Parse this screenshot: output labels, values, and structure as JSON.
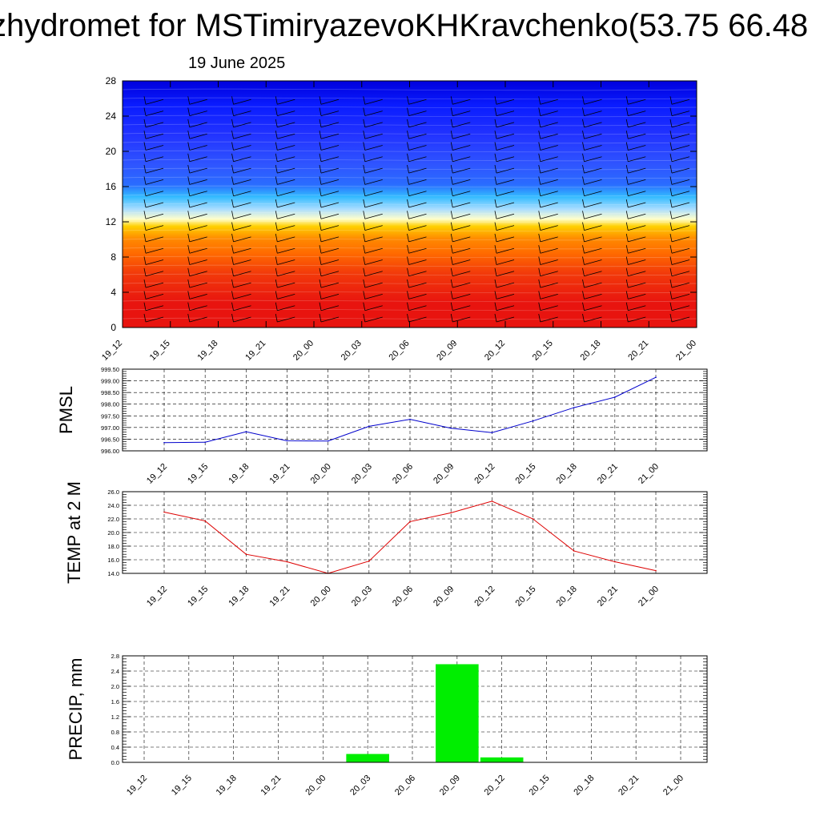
{
  "title": "zhydromet for MSTimiryazevoKHKravchenko(53.75 66.48",
  "date": "19 June 2025",
  "time_labels": [
    "19_12",
    "19_15",
    "19_18",
    "19_21",
    "20_00",
    "20_03",
    "20_06",
    "20_09",
    "20_12",
    "20_15",
    "20_18",
    "20_21",
    "21_00"
  ],
  "chart_data": [
    {
      "type": "heatmap",
      "title": "",
      "ylabel": "",
      "ylim": [
        0,
        28
      ],
      "yticks": [
        "0",
        "4",
        "8",
        "12",
        "16",
        "20",
        "24",
        "28"
      ],
      "x": [
        "19_12",
        "19_15",
        "19_18",
        "19_21",
        "20_00",
        "20_03",
        "20_06",
        "20_09",
        "20_12",
        "20_15",
        "20_18",
        "20_21",
        "21_00"
      ],
      "note_colors": [
        "#e8140f",
        "#ff8a00",
        "#ffd000",
        "#ffffcc",
        "#33bbff",
        "#2233ff",
        "#0000dd"
      ],
      "grid": false
    },
    {
      "type": "line",
      "ylabel": "PMSL",
      "ylim": [
        996.0,
        999.5
      ],
      "yticks": [
        "996.00",
        "996.50",
        "997.00",
        "997.50",
        "998.00",
        "998.50",
        "999.00",
        "999.50"
      ],
      "x": [
        "19_12",
        "19_15",
        "19_18",
        "19_21",
        "20_00",
        "20_03",
        "20_06",
        "20_09",
        "20_12",
        "20_15",
        "20_18",
        "20_21",
        "21_00"
      ],
      "values": [
        996.35,
        996.37,
        996.82,
        996.43,
        996.42,
        997.05,
        997.35,
        996.97,
        996.78,
        997.28,
        997.85,
        998.3,
        999.15
      ],
      "color": "#0000cc",
      "grid": true
    },
    {
      "type": "line",
      "ylabel": "TEMP at 2 M",
      "ylim": [
        14.0,
        26.0
      ],
      "yticks": [
        "14.0",
        "16.0",
        "18.0",
        "20.0",
        "22.0",
        "24.0",
        "26.0"
      ],
      "x": [
        "19_12",
        "19_15",
        "19_18",
        "19_21",
        "20_00",
        "20_03",
        "20_06",
        "20_09",
        "20_12",
        "20_15",
        "20_18",
        "20_21",
        "21_00"
      ],
      "values": [
        23.0,
        21.7,
        16.8,
        15.7,
        14.0,
        15.8,
        21.6,
        22.9,
        24.6,
        22.0,
        17.3,
        15.7,
        14.4
      ],
      "color": "#dd0000",
      "grid": true
    },
    {
      "type": "bar",
      "ylabel": "PRECIP, mm",
      "ylim": [
        0.0,
        2.8
      ],
      "yticks": [
        "0.0",
        "0.4",
        "0.8",
        "1.2",
        "1.6",
        "2.0",
        "2.4",
        "2.8"
      ],
      "x": [
        "19_12",
        "19_15",
        "19_18",
        "19_21",
        "20_00",
        "20_03",
        "20_06",
        "20_09",
        "20_12",
        "20_15",
        "20_18",
        "20_21",
        "21_00"
      ],
      "values": [
        0,
        0,
        0,
        0,
        0,
        0.22,
        0,
        2.58,
        0.13,
        0,
        0,
        0,
        0
      ],
      "color": "#00ee00",
      "grid": true
    }
  ]
}
